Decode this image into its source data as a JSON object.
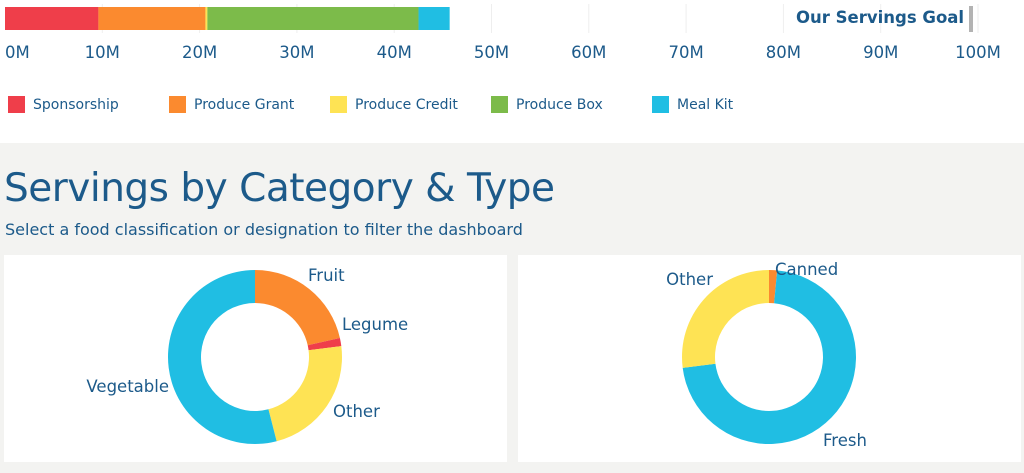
{
  "colors": {
    "Sponsorship": "#ef3e4a",
    "Produce Grant": "#fb8a2f",
    "Produce Credit": "#fee354",
    "Produce Box": "#7cbb4a",
    "Meal Kit": "#20bee3",
    "text": "#1c5a8a",
    "goal_marker": "#b3b3b3",
    "gridline": "#eeeeee"
  },
  "goal": {
    "label": "Our Servings Goal",
    "value": 100
  },
  "chart_data": [
    {
      "type": "bar",
      "orientation": "horizontal",
      "stacked": true,
      "units": "M",
      "xlim": [
        0,
        100
      ],
      "ticks": [
        0,
        10,
        20,
        30,
        40,
        50,
        60,
        70,
        80,
        90,
        100
      ],
      "tick_labels": [
        "0M",
        "10M",
        "20M",
        "30M",
        "40M",
        "50M",
        "60M",
        "70M",
        "80M",
        "90M",
        "100M"
      ],
      "grid": true,
      "legend_position": "bottom",
      "series": [
        {
          "name": "Sponsorship",
          "value": 9.6
        },
        {
          "name": "Produce Grant",
          "value": 11.0
        },
        {
          "name": "Produce Credit",
          "value": 0.2
        },
        {
          "name": "Produce Box",
          "value": 21.7
        },
        {
          "name": "Meal Kit",
          "value": 3.2
        }
      ]
    },
    {
      "type": "pie",
      "donut": true,
      "slices": [
        {
          "label": "Fruit",
          "value": 21.5,
          "color": "#fb8a2f"
        },
        {
          "label": "Legume",
          "value": 1.5,
          "color": "#ef3e4a"
        },
        {
          "label": "Other",
          "value": 23.0,
          "color": "#fee354"
        },
        {
          "label": "Vegetable",
          "value": 54.0,
          "color": "#20bee3"
        }
      ]
    },
    {
      "type": "pie",
      "donut": true,
      "slices": [
        {
          "label": "Canned",
          "value": 1.5,
          "color": "#fb8a2f"
        },
        {
          "label": "Fresh",
          "value": 71.5,
          "color": "#20bee3"
        },
        {
          "label": "Other",
          "value": 27.0,
          "color": "#fee354"
        }
      ]
    }
  ],
  "section": {
    "title": "Servings by Category & Type",
    "subtitle": "Select a food classification or designation to filter the dashboard"
  }
}
